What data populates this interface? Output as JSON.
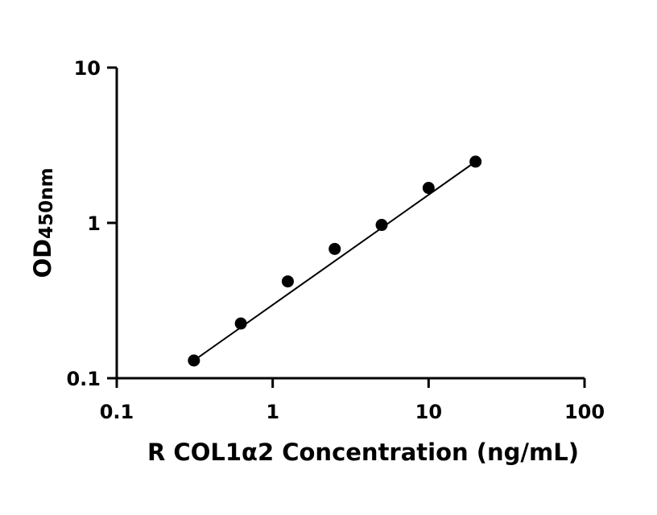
{
  "chart_data": {
    "type": "scatter",
    "x_scale": "log",
    "y_scale": "log",
    "xlim": [
      0.1,
      100
    ],
    "ylim": [
      0.1,
      10
    ],
    "xticks": [
      {
        "value": 0.1,
        "label": "0.1"
      },
      {
        "value": 1,
        "label": "1"
      },
      {
        "value": 10,
        "label": "10"
      },
      {
        "value": 100,
        "label": "100"
      }
    ],
    "yticks": [
      {
        "value": 0.1,
        "label": "0.1"
      },
      {
        "value": 1,
        "label": "1"
      },
      {
        "value": 10,
        "label": "10"
      }
    ],
    "xlabel": "R COL1α2 Concentration (ng/mL)",
    "ylabel_main": "OD",
    "ylabel_sub": "450nm",
    "grid": false,
    "legend": "none",
    "color": "#000000",
    "series": [
      {
        "x": [
          0.3125,
          0.625,
          1.25,
          2.5,
          5,
          10,
          20
        ],
        "y": [
          0.13,
          0.225,
          0.42,
          0.68,
          0.97,
          1.68,
          2.48
        ]
      }
    ],
    "fit_line": {
      "x": [
        0.3125,
        20
      ],
      "y": [
        0.13,
        2.48
      ]
    }
  }
}
